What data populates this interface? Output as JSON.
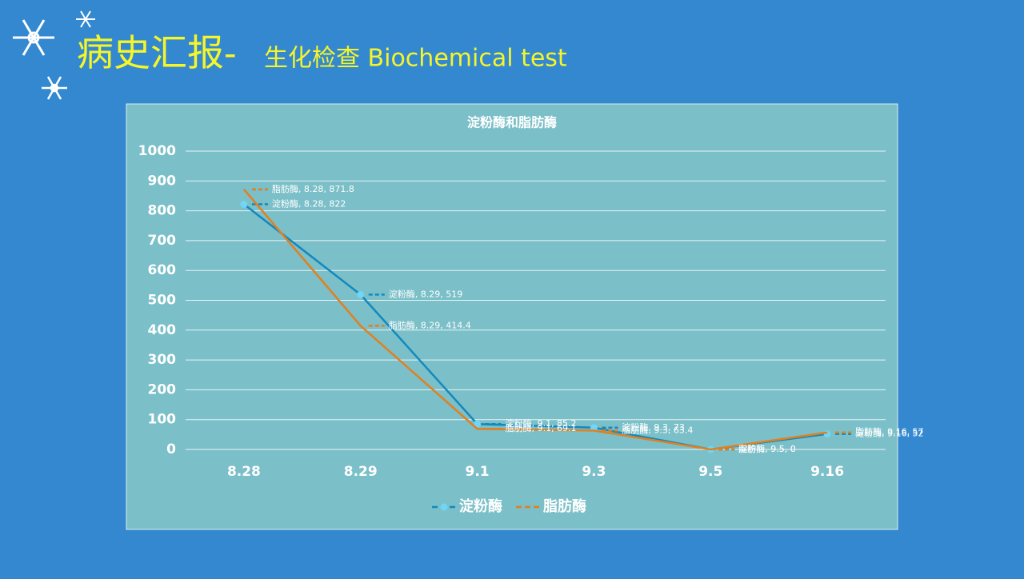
{
  "header": {
    "title": "病史汇报-",
    "subtitle": "生化检查 Biochemical test"
  },
  "chart_data": {
    "type": "line",
    "title": "淀粉酶和脂肪酶",
    "categories": [
      "8.28",
      "8.29",
      "9.1",
      "9.3",
      "9.5",
      "9.16"
    ],
    "series": [
      {
        "name": "淀粉酶",
        "color": "#1289bf",
        "marker_color": "#6fd6f5",
        "values": [
          822,
          519,
          85.2,
          73,
          0,
          52
        ],
        "value_labels": [
          "淀粉酶, 8.28, 822",
          "淀粉酶, 8.29, 519",
          "淀粉酶, 9.1, 85.2",
          "淀粉酶, 9.3, 73",
          "淀粉酶, 9.5, 0",
          "淀粉酶, 9.16, 52"
        ]
      },
      {
        "name": "脂肪酶",
        "color": "#e27f1f",
        "values": [
          871.8,
          414.4,
          69.1,
          63.4,
          0,
          57
        ],
        "value_labels": [
          "脂肪酶, 8.28, 871.8",
          "脂肪酶, 8.29, 414.4",
          "脂肪酶, 9.1, 69.1",
          "脂肪酶, 9.3, 63.4",
          "脂肪酶, 9.5, 0",
          "脂肪酶, 9.16, 57"
        ]
      }
    ],
    "ylim": [
      0,
      1000
    ],
    "yticks": [
      0,
      100,
      200,
      300,
      400,
      500,
      600,
      700,
      800,
      900,
      1000
    ],
    "grid": true,
    "legend": "bottom"
  }
}
